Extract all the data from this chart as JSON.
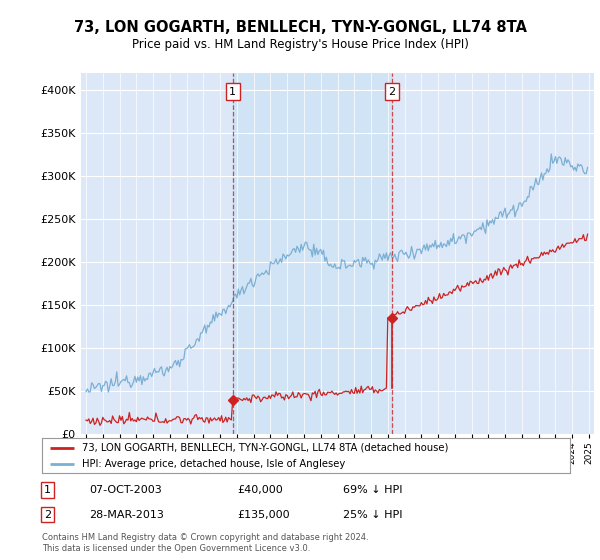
{
  "title": "73, LON GOGARTH, BENLLECH, TYN-Y-GONGL, LL74 8TA",
  "subtitle": "Price paid vs. HM Land Registry's House Price Index (HPI)",
  "ylim": [
    0,
    420000
  ],
  "yticks": [
    0,
    50000,
    100000,
    150000,
    200000,
    250000,
    300000,
    350000,
    400000
  ],
  "hpi_color": "#7bafd4",
  "property_color": "#cc2222",
  "shade_color": "#d0e4f5",
  "marker1_idx": 105,
  "marker1_year": 2003.75,
  "marker1_price": 40000,
  "marker1_date": "07-OCT-2003",
  "marker1_pct": "69% ↓ HPI",
  "marker2_idx": 216,
  "marker2_year": 2013.25,
  "marker2_price": 135000,
  "marker2_date": "28-MAR-2013",
  "marker2_pct": "25% ↓ HPI",
  "legend_property": "73, LON GOGARTH, BENLLECH, TYN-Y-GONGL, LL74 8TA (detached house)",
  "legend_hpi": "HPI: Average price, detached house, Isle of Anglesey",
  "footer": "Contains HM Land Registry data © Crown copyright and database right 2024.\nThis data is licensed under the Open Government Licence v3.0.",
  "plot_bg_color": "#dce8f7",
  "n_months": 360,
  "start_year": 1995,
  "xlim_left": 1994.7,
  "xlim_right": 2025.3
}
